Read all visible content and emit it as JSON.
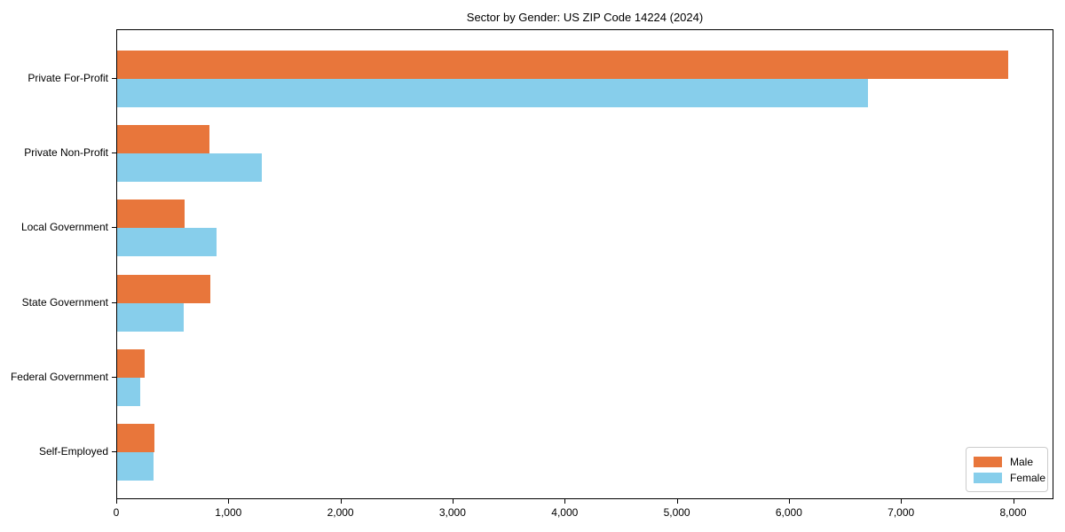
{
  "chart_data": {
    "type": "bar",
    "orientation": "horizontal",
    "title": "Sector by Gender: US ZIP Code 14224 (2024)",
    "categories": [
      "Private For-Profit",
      "Private Non-Profit",
      "Local Government",
      "State Government",
      "Federal Government",
      "Self-Employed"
    ],
    "series": [
      {
        "name": "Male",
        "color": "#e8763b",
        "values": [
          7950,
          820,
          600,
          830,
          245,
          335
        ]
      },
      {
        "name": "Female",
        "color": "#87ceeb",
        "values": [
          6700,
          1290,
          890,
          595,
          205,
          325
        ]
      }
    ],
    "xlabel": "",
    "ylabel": "",
    "xlim": [
      0,
      8360
    ],
    "xticks": [
      0,
      1000,
      2000,
      3000,
      4000,
      5000,
      6000,
      7000,
      8000
    ],
    "xtick_labels": [
      "0",
      "1,000",
      "2,000",
      "3,000",
      "4,000",
      "5,000",
      "6,000",
      "7,000",
      "8,000"
    ],
    "grid": false,
    "legend": {
      "position": "lower right",
      "entries": [
        "Male",
        "Female"
      ]
    }
  }
}
